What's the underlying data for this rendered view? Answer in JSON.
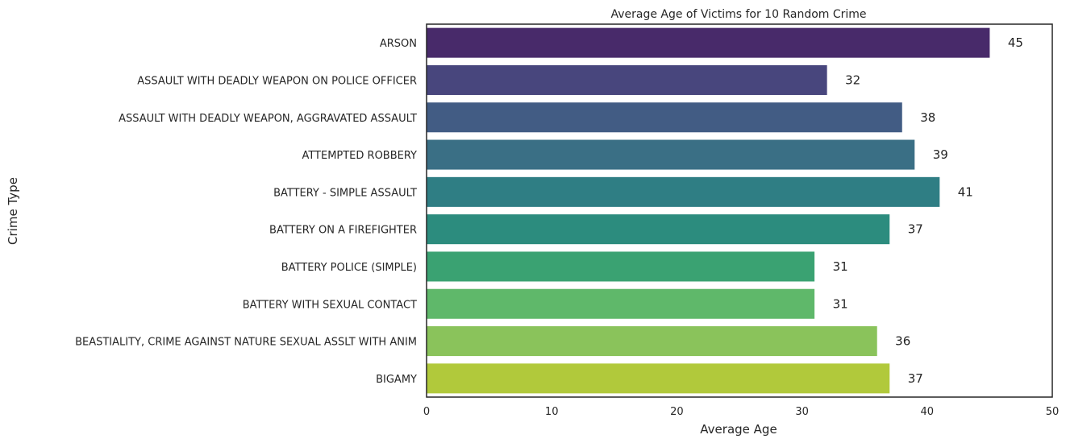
{
  "chart_data": {
    "type": "bar",
    "orientation": "horizontal",
    "title": "Average Age of Victims for 10 Random Crime",
    "xlabel": "Average Age",
    "ylabel": "Crime Type",
    "xlim": [
      0,
      50
    ],
    "xticks": [
      "0",
      "10",
      "20",
      "30",
      "40",
      "50"
    ],
    "grid": false,
    "categories": [
      "ARSON",
      "ASSAULT WITH DEADLY WEAPON ON POLICE OFFICER",
      "ASSAULT WITH DEADLY WEAPON, AGGRAVATED ASSAULT",
      "ATTEMPTED ROBBERY",
      "BATTERY - SIMPLE ASSAULT",
      "BATTERY ON A FIREFIGHTER",
      "BATTERY POLICE (SIMPLE)",
      "BATTERY WITH SEXUAL CONTACT",
      "BEASTIALITY, CRIME AGAINST NATURE SEXUAL ASSLT WITH ANIM",
      "BIGAMY"
    ],
    "values": [
      45,
      32,
      38,
      39,
      41,
      37,
      31,
      31,
      36,
      37
    ],
    "data_labels": [
      "45",
      "32",
      "38",
      "39",
      "41",
      "37",
      "31",
      "31",
      "36",
      "37"
    ],
    "colors": [
      "#482a6a",
      "#48467d",
      "#425c84",
      "#3a6f85",
      "#2f7e84",
      "#2c8c7e",
      "#3aa272",
      "#5fb86a",
      "#8ac35b",
      "#b1c93b"
    ]
  }
}
